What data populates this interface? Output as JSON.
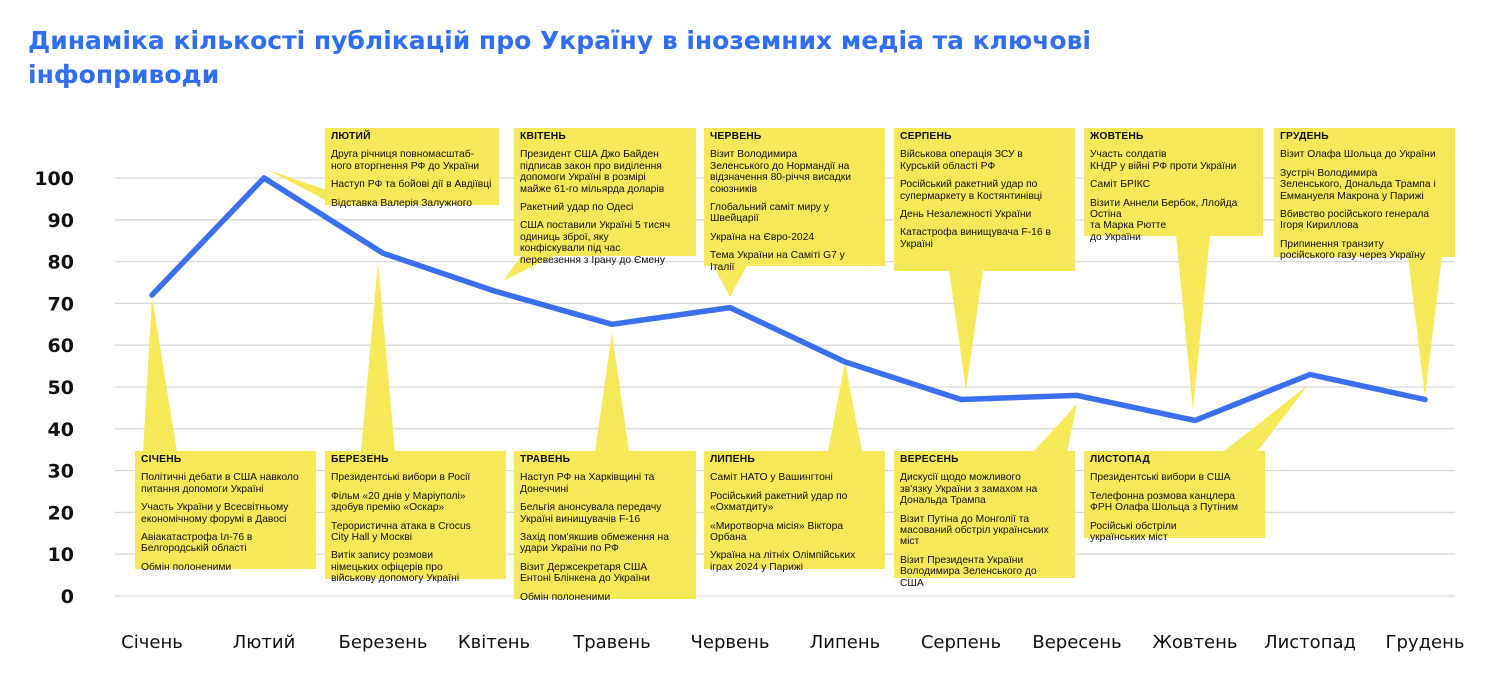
{
  "title": "Динаміка кількості публікацій про Україну в іноземних медіа та ключові інфоприводи",
  "colors": {
    "title": "#2f6ef0",
    "line": "#3a6ff0",
    "callout": "#f7e85a",
    "grid": "#d9d9d9"
  },
  "chart_data": {
    "type": "line",
    "categories": [
      "Січень",
      "Лютий",
      "Березень",
      "Квітень",
      "Травень",
      "Червень",
      "Липень",
      "Серпень",
      "Вересень",
      "Жовтень",
      "Листопад",
      "Грудень"
    ],
    "values": [
      72,
      100,
      82,
      73,
      65,
      69,
      56,
      47,
      48,
      42,
      53,
      47
    ],
    "yticks": [
      0,
      10,
      20,
      30,
      40,
      50,
      60,
      70,
      80,
      90,
      100
    ],
    "ylim": [
      0,
      100
    ],
    "grid": true,
    "legend": "none"
  },
  "callouts": [
    {
      "month": "СІЧЕНЬ",
      "events": [
        "Політичні дебати в США навколо\nпитання допомоги Україні",
        "Участь України у Всесвітньому\nекономічному форумі в Давосі",
        "Авіакатастрофа Іл-76 в\nБелгородській області",
        "Обмін полоненими"
      ]
    },
    {
      "month": "ЛЮТИЙ",
      "events": [
        "Друга річниця повномасштаб-\nного вторгнення РФ до України",
        "Наступ РФ та бойові дії в Авдіївці",
        "Відставка Валерія Залужного"
      ]
    },
    {
      "month": "БЕРЕЗЕНЬ",
      "events": [
        "Президентські вибори в Росії",
        "Фільм «20 днів у Маріуполі»\nздобув премію «Оскар»",
        "Терористична атака в Crocus\nCity Hall у Москві",
        "Витік запису розмови\nнімецьких офіцерів про\nвійськову допомогу Україні"
      ]
    },
    {
      "month": "КВІТЕНЬ",
      "events": [
        "Президент США Джо Байден\nпідписав закон про виділення\nдопомоги Україні в розмірі\nмайже 61-го мільярда доларів",
        "Ракетний удар по Одесі",
        "США поставили Україні 5 тисяч\nодиниць зброї, яку\nконфіскували під час\nперевезення з Ірану до Ємену"
      ]
    },
    {
      "month": "ТРАВЕНЬ",
      "events": [
        "Наступ РФ на Харківщині та\nДонеччині",
        "Бельгія анонсувала передачу\nУкраїні винищувачів F-16",
        "Захід пом'якшив обмеження на\nудари України по РФ",
        "Візит Держсекретаря США\nЕнтоні Блінкена до України",
        "Обмін полоненими"
      ]
    },
    {
      "month": "ЧЕРВЕНЬ",
      "events": [
        "Візит Володимира\nЗеленського до Нормандії на\nвідзначення 80-річчя висадки\nсоюзників",
        "Глобальний саміт миру у\nШвейцарії",
        "Україна на Євро-2024",
        "Тема України на Саміті G7 у\nІталії"
      ]
    },
    {
      "month": "ЛИПЕНЬ",
      "events": [
        "Саміт НАТО у Вашингтоні",
        "Російський ракетний удар по\n«Охматдиту»",
        "«Миротворча місія» Віктора\nОрбана",
        "Україна на літніх Олімпійських\nіграх 2024 у Парижі"
      ]
    },
    {
      "month": "СЕРПЕНЬ",
      "events": [
        "Військова операція ЗСУ в\nКурській області РФ",
        "Російський ракетний удар по\nсупермаркету в Костянтинівці",
        "День Незалежності України",
        "Катастрофа винищувача F-16 в\nУкраїні"
      ]
    },
    {
      "month": "ВЕРЕСЕНЬ",
      "events": [
        "Дискусії щодо можливого\nзв'язку України з замахом на\nДональда Трампа",
        "Візит Путіна до Монголії та\nмасований обстріл українських\nміст",
        "Візит Президента України\nВолодимира Зеленського до\nСША"
      ]
    },
    {
      "month": "ЖОВТЕНЬ",
      "events": [
        "Участь солдатів\nКНДР у війні РФ проти України",
        "Саміт БРІКС",
        "Візити Аннели Бербок, Ллойда\nОстіна\nта Марка Рютте\nдо України"
      ]
    },
    {
      "month": "ЛИСТОПАД",
      "events": [
        "Президентські вибори в США",
        "Телефонна розмова канцлера\nФРН Олафа Шольца з Путіним",
        "Російські обстріли\nукраїнських міст"
      ]
    },
    {
      "month": "ГРУДЕНЬ",
      "events": [
        "Візит Олафа Шольца до України",
        "Зустріч Володимира\nЗеленського, Дональда Трампа і\nЕммануеля Макрона у Парижі",
        "Вбивство російського генерала\nІгоря Кириллова",
        "Припинення транзиту\nросійського газу через Україну"
      ]
    }
  ]
}
